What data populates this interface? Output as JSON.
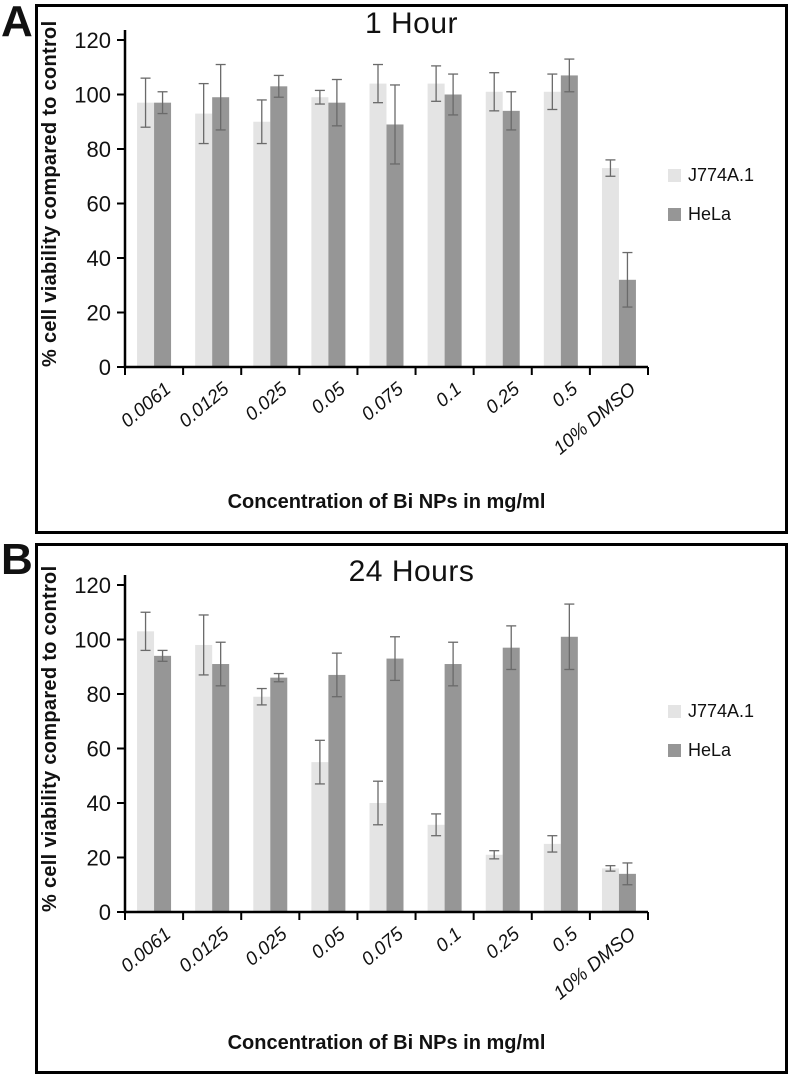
{
  "styles": {
    "series1_color": "#e4e4e4",
    "series2_color": "#969696",
    "error_bar_color": "#6a6a6a",
    "axis_color": "#000000"
  },
  "chart_data": [
    {
      "type": "bar",
      "panel_label": "A",
      "title": "1 Hour",
      "xlabel": "Concentration of Bi NPs in mg/ml",
      "ylabel": "% cell viability compared to control",
      "ylim": [
        0,
        120
      ],
      "yticks": [
        0,
        20,
        40,
        60,
        80,
        100,
        120
      ],
      "grid": false,
      "legend_position": "right",
      "categories": [
        "0.0061",
        "0.0125",
        "0.025",
        "0.05",
        "0.075",
        "0.1",
        "0.25",
        "0.5",
        "10% DMSO"
      ],
      "series": [
        {
          "name": "J774A.1",
          "color": "#e4e4e4",
          "values": [
            97,
            93,
            90,
            99,
            104,
            104,
            101,
            101,
            73
          ],
          "errors": [
            9,
            11,
            8,
            2.5,
            7,
            6.5,
            7,
            6.5,
            3
          ]
        },
        {
          "name": "HeLa",
          "color": "#969696",
          "values": [
            97,
            99,
            103,
            97,
            89,
            100,
            94,
            107,
            32
          ],
          "errors": [
            4,
            12,
            4,
            8.5,
            14.5,
            7.5,
            7,
            6,
            10
          ]
        }
      ]
    },
    {
      "type": "bar",
      "panel_label": "B",
      "title": "24 Hours",
      "xlabel": "Concentration of Bi NPs in mg/ml",
      "ylabel": "% cell viability compared to control",
      "ylim": [
        0,
        120
      ],
      "yticks": [
        0,
        20,
        40,
        60,
        80,
        100,
        120
      ],
      "grid": false,
      "legend_position": "right",
      "categories": [
        "0.0061",
        "0.0125",
        "0.025",
        "0.05",
        "0.075",
        "0.1",
        "0.25",
        "0.5",
        "10% DMSO"
      ],
      "series": [
        {
          "name": "J774A.1",
          "color": "#e4e4e4",
          "values": [
            103,
            98,
            79,
            55,
            40,
            32,
            21,
            25,
            16
          ],
          "errors": [
            7,
            11,
            3,
            8,
            8,
            4,
            1.5,
            3,
            1
          ]
        },
        {
          "name": "HeLa",
          "color": "#969696",
          "values": [
            94,
            91,
            86,
            87,
            93,
            91,
            97,
            101,
            14
          ],
          "errors": [
            2,
            8,
            1.5,
            8,
            8,
            8,
            8,
            12,
            4
          ]
        }
      ]
    }
  ]
}
